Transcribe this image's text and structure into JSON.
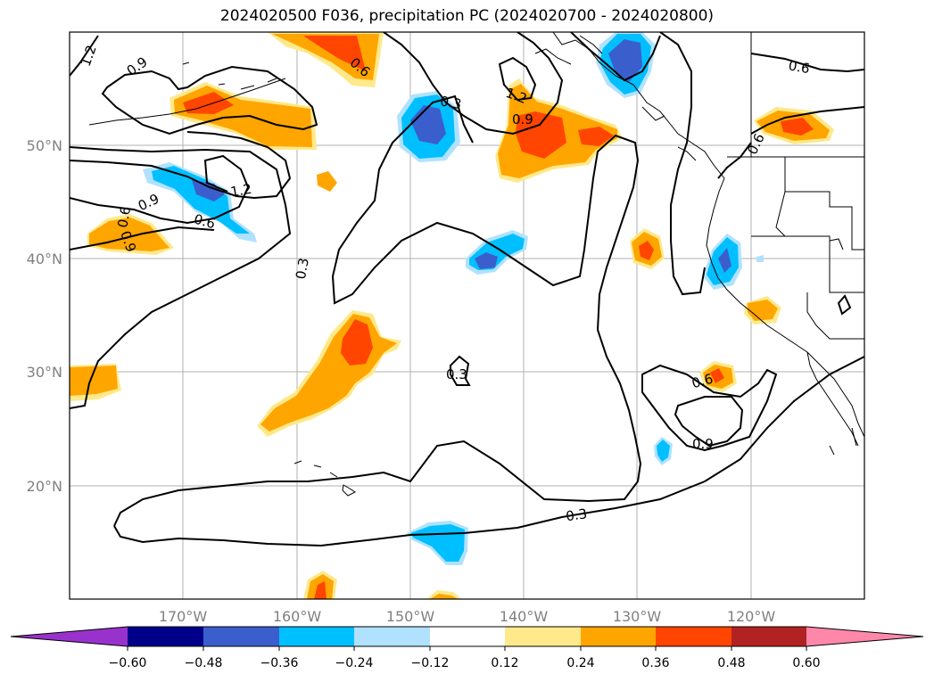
{
  "title": "2024020500 F036, precipitation PC (2024020700 - 2024020800)",
  "map": {
    "projection": "PlateCarree",
    "extent": {
      "lon_min": -180,
      "lon_max": -110,
      "lat_min": 10,
      "lat_max": 60
    },
    "lat_labels": [
      "50°N",
      "40°N",
      "30°N",
      "20°N"
    ],
    "lon_labels": [
      "170°W",
      "160°W",
      "150°W",
      "140°W",
      "130°W",
      "120°W"
    ],
    "gridlines": true,
    "contour_labels": [
      "1.2",
      "0.9",
      "0.3",
      "1.2",
      "0.6",
      "0.9",
      "0.6",
      "0.9",
      "0.6",
      "0.3",
      "0.6",
      "0.6",
      "1.2",
      "0.9",
      "0.3",
      "0.6",
      "0.9",
      "0.3"
    ],
    "contour_color": "#000000"
  },
  "colorbar": {
    "ticks": [
      "−0.60",
      "−0.48",
      "−0.36",
      "−0.24",
      "−0.12",
      "0.12",
      "0.24",
      "0.36",
      "0.48",
      "0.60"
    ],
    "colors": [
      "#9932cc",
      "#00008b",
      "#3a5fcd",
      "#00bfff",
      "#b0e2ff",
      "#ffffff",
      "#ffe98a",
      "#ffa500",
      "#ff4500",
      "#b22222",
      "#ff88aa"
    ],
    "extend": "both"
  }
}
